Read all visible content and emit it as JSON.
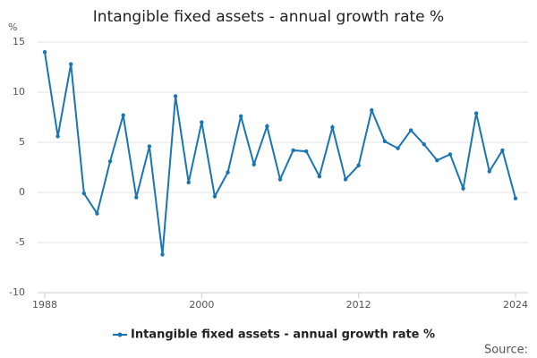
{
  "chart_data": {
    "type": "line",
    "title": "Intangible fixed assets - annual growth rate %",
    "y_label": "%",
    "source": "Source:",
    "x": [
      1988,
      1989,
      1990,
      1991,
      1992,
      1993,
      1994,
      1995,
      1996,
      1997,
      1998,
      1999,
      2000,
      2001,
      2002,
      2003,
      2004,
      2005,
      2006,
      2007,
      2008,
      2009,
      2010,
      2011,
      2012,
      2013,
      2014,
      2015,
      2016,
      2017,
      2018,
      2019,
      2020,
      2021,
      2022,
      2023,
      2024
    ],
    "series": [
      {
        "name": "Intangible fixed assets - annual growth rate %",
        "color": "#1a75b3",
        "values": [
          14.0,
          5.6,
          12.8,
          -0.1,
          -2.1,
          3.1,
          7.7,
          -0.5,
          4.6,
          -6.2,
          9.6,
          1.0,
          7.0,
          -0.4,
          2.0,
          7.6,
          2.8,
          6.6,
          1.3,
          4.2,
          4.1,
          1.6,
          6.5,
          1.3,
          2.7,
          8.2,
          5.1,
          4.4,
          6.2,
          4.8,
          3.2,
          3.8,
          0.4,
          7.9,
          2.1,
          4.2,
          -0.6
        ]
      }
    ],
    "xlim": [
      1988,
      2024
    ],
    "xticks": [
      1988,
      2000,
      2012,
      2024
    ],
    "ylim": [
      -10,
      15
    ],
    "yticks": [
      -10,
      -5,
      0,
      5,
      10,
      15
    ],
    "grid": true
  }
}
